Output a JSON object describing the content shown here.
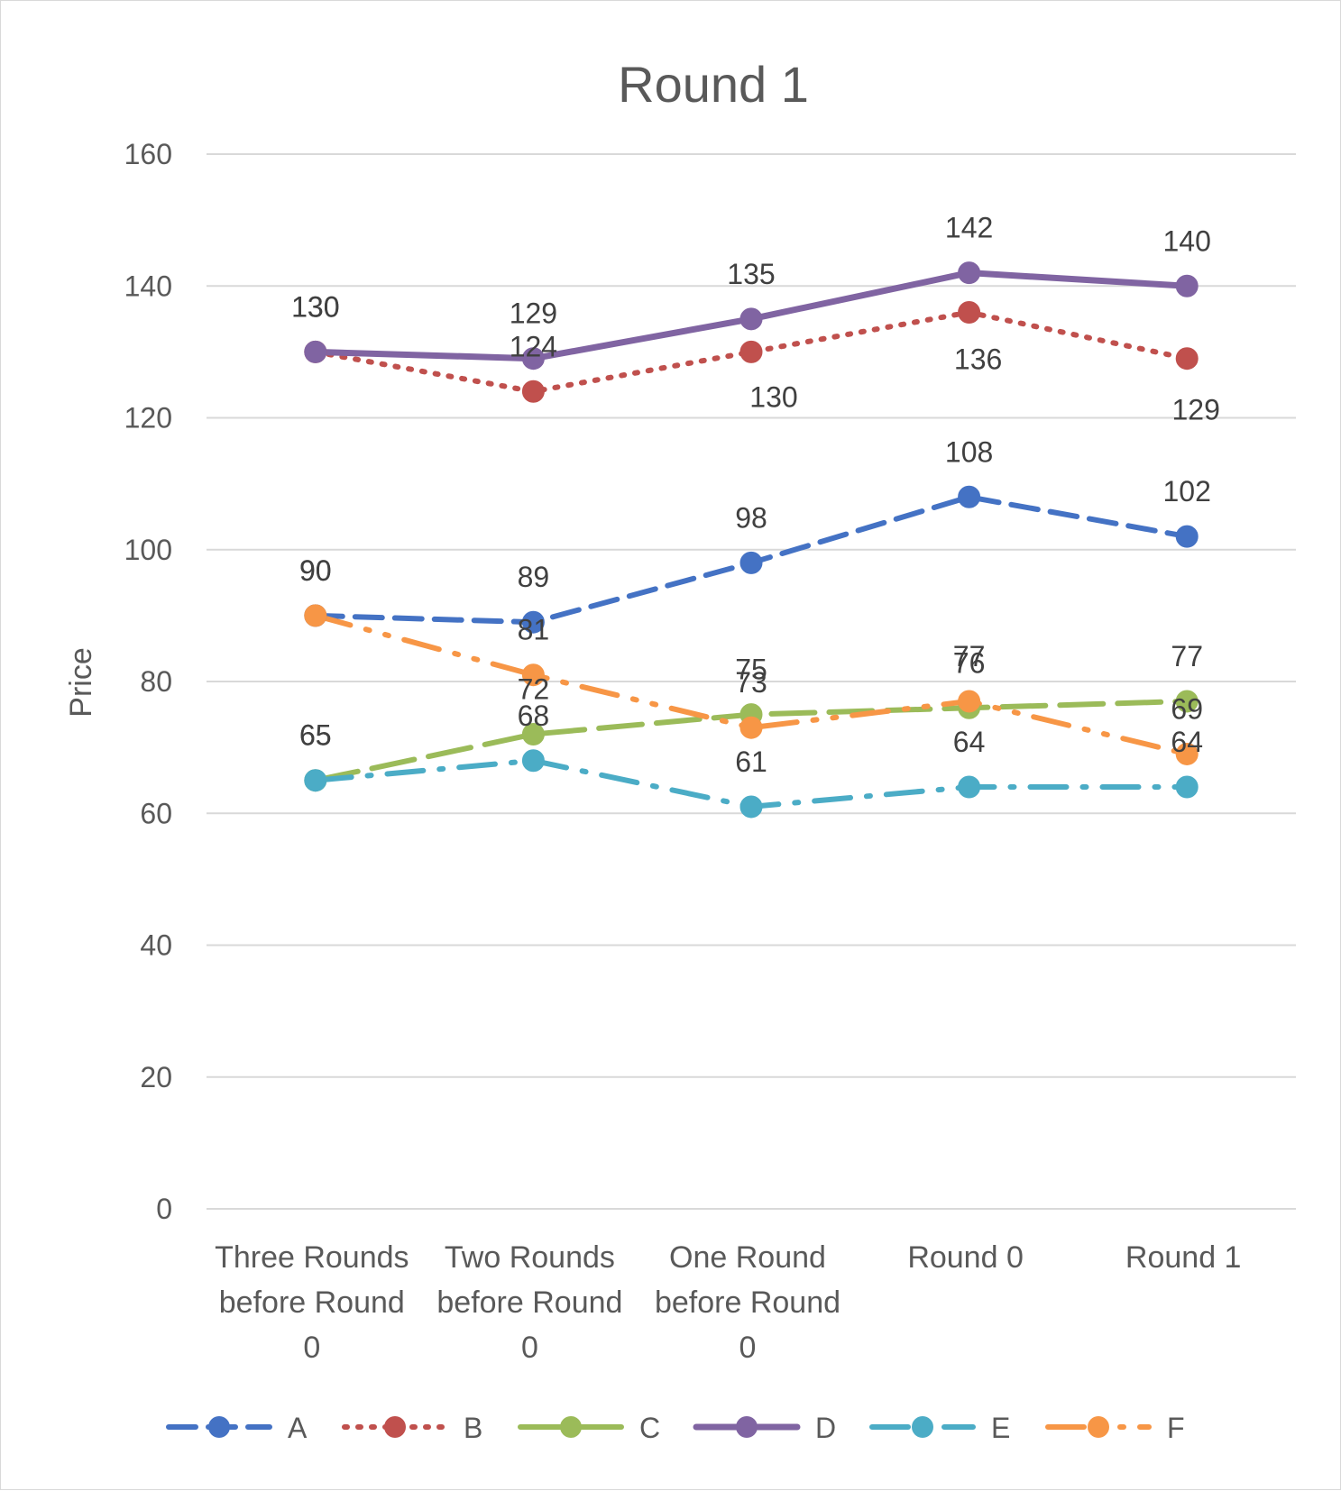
{
  "chart_data": {
    "type": "line",
    "title": "Round 1",
    "xlabel": "",
    "ylabel": "Price",
    "ylim": [
      0,
      160
    ],
    "yticks": [
      0,
      20,
      40,
      60,
      80,
      100,
      120,
      140,
      160
    ],
    "grid": true,
    "legend": "bottom",
    "categories": [
      [
        "Three Rounds",
        "before Round",
        "0"
      ],
      [
        "Two Rounds",
        "before Round",
        "0"
      ],
      [
        "One Round",
        "before Round",
        "0"
      ],
      [
        "Round 0"
      ],
      [
        "Round 1"
      ]
    ],
    "series": [
      {
        "name": "A",
        "color": "#4472C4",
        "dash": "dash",
        "values": [
          90,
          89,
          98,
          108,
          102
        ]
      },
      {
        "name": "B",
        "color": "#C0504D",
        "dash": "dot",
        "values": [
          130,
          124,
          130,
          136,
          129
        ]
      },
      {
        "name": "C",
        "color": "#9BBB59",
        "dash": "longdash",
        "values": [
          65,
          72,
          75,
          76,
          77
        ]
      },
      {
        "name": "D",
        "color": "#8064A2",
        "dash": "solid",
        "values": [
          130,
          129,
          135,
          142,
          140
        ]
      },
      {
        "name": "E",
        "color": "#4BACC6",
        "dash": "dashdot",
        "values": [
          65,
          68,
          61,
          64,
          64
        ]
      },
      {
        "name": "F",
        "color": "#F79646",
        "dash": "dashdotdot",
        "values": [
          90,
          81,
          73,
          77,
          69
        ]
      }
    ]
  }
}
